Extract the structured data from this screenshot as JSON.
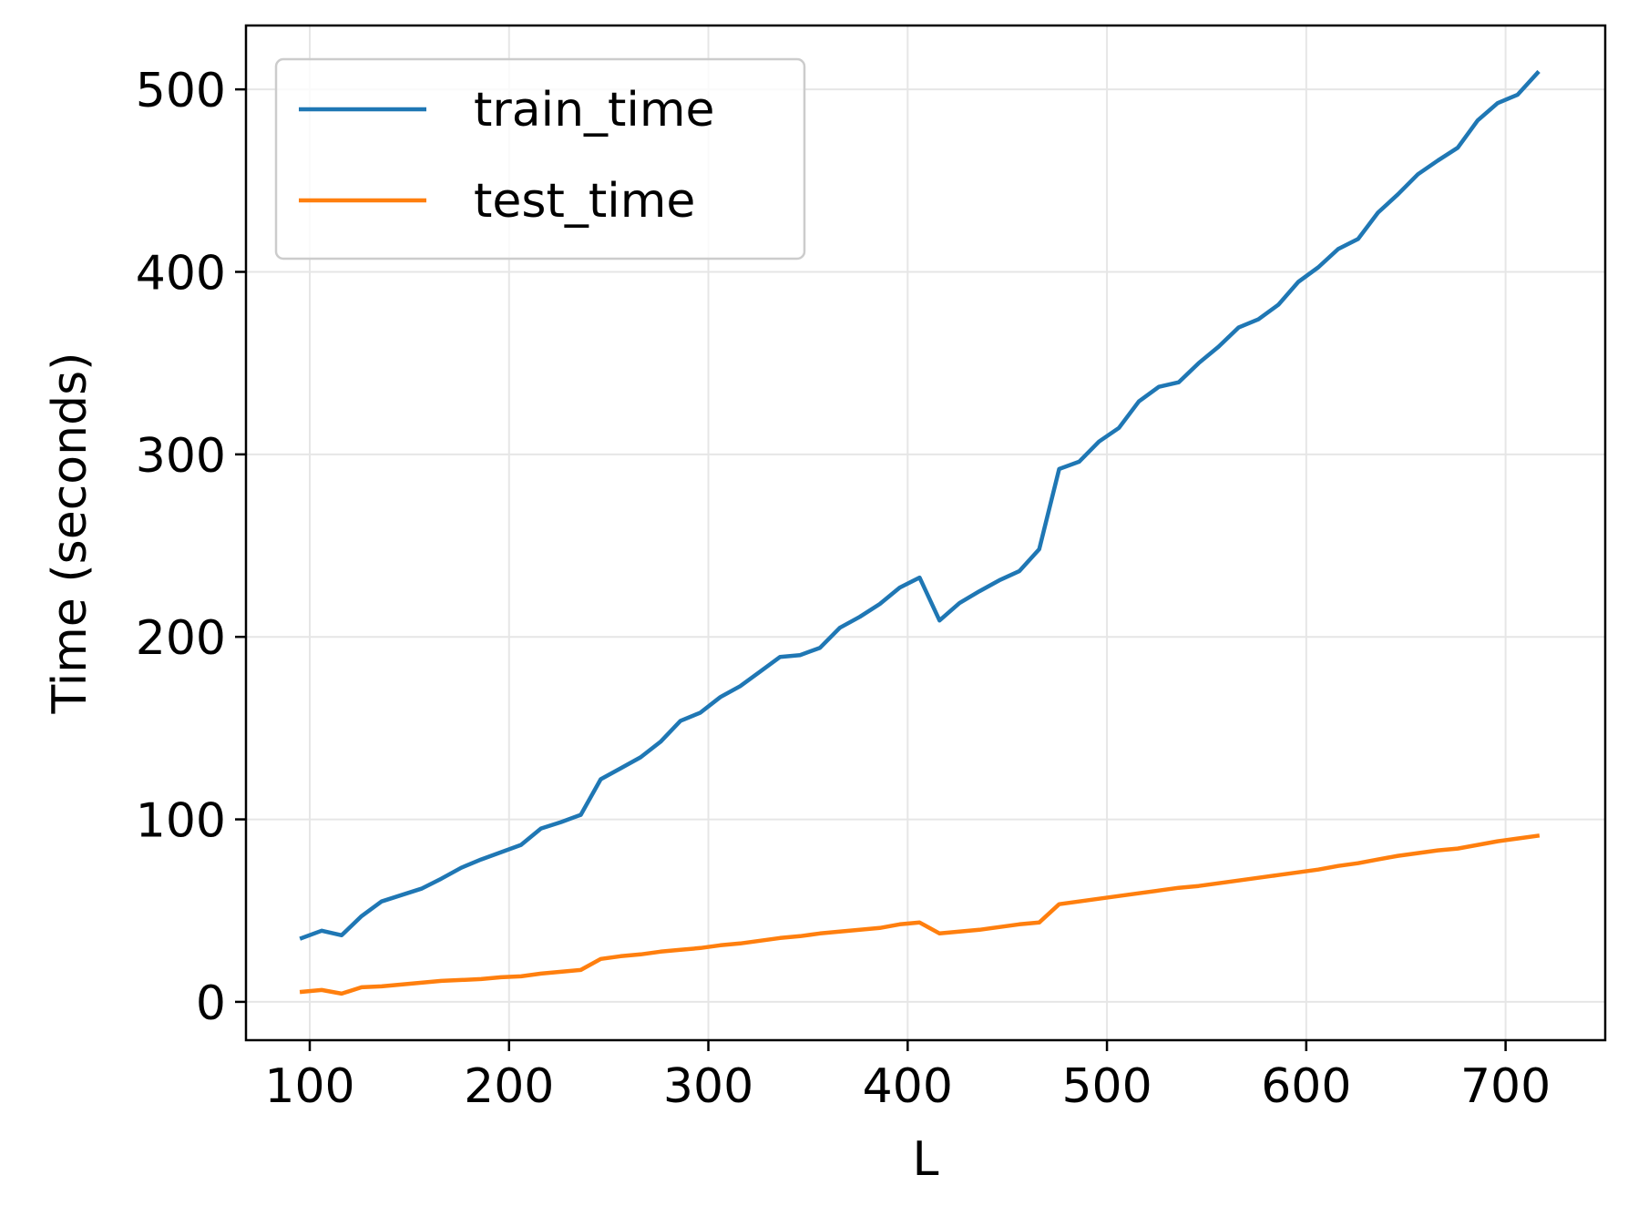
{
  "chart_data": {
    "type": "line",
    "title": "",
    "xlabel": "L",
    "ylabel": "Time (seconds)",
    "xlim": [
      68,
      750
    ],
    "ylim": [
      -21,
      535
    ],
    "xticks": [
      100,
      200,
      300,
      400,
      500,
      600,
      700
    ],
    "yticks": [
      0,
      100,
      200,
      300,
      400,
      500
    ],
    "grid": true,
    "legend_position": "top-left",
    "x": [
      96,
      106,
      116,
      126,
      136,
      146,
      156,
      166,
      176,
      186,
      196,
      206,
      216,
      226,
      236,
      246,
      256,
      266,
      276,
      286,
      296,
      306,
      316,
      326,
      336,
      346,
      356,
      366,
      376,
      386,
      396,
      406,
      416,
      426,
      436,
      446,
      456,
      466,
      476,
      486,
      496,
      506,
      516,
      526,
      536,
      546,
      556,
      566,
      576,
      586,
      596,
      606,
      616,
      626,
      636,
      646,
      656,
      666,
      676,
      686,
      696,
      706,
      716
    ],
    "series": [
      {
        "name": "train_time",
        "color": "#1f77b4",
        "values": [
          35,
          39,
          36.5,
          47,
          55,
          58.5,
          62,
          67.5,
          73.5,
          78,
          82,
          86,
          95,
          98.5,
          102.5,
          122,
          128,
          134,
          142.5,
          154,
          158.5,
          167,
          173,
          181,
          189,
          190,
          194,
          205,
          211,
          218,
          227,
          232.5,
          209,
          218.5,
          225,
          231,
          236,
          248,
          292,
          296,
          307,
          314.5,
          329,
          337,
          339.5,
          350,
          359,
          369.5,
          374,
          382,
          394.5,
          402.5,
          412.5,
          418,
          432.5,
          442.5,
          453.5,
          461,
          468,
          483,
          492.5,
          497,
          509
        ]
      },
      {
        "name": "test_time",
        "color": "#ff7f0e",
        "values": [
          5.5,
          6.5,
          4.5,
          8,
          8.5,
          9.5,
          10.5,
          11.5,
          12,
          12.5,
          13.5,
          14,
          15.5,
          16.5,
          17.5,
          23.5,
          25,
          26,
          27.5,
          28.5,
          29.5,
          31,
          32,
          33.5,
          35,
          36,
          37.5,
          38.5,
          39.5,
          40.5,
          42.5,
          43.5,
          37.5,
          38.5,
          39.5,
          41,
          42.5,
          43.5,
          53.5,
          55,
          56.5,
          58,
          59.5,
          61,
          62.5,
          63.5,
          65,
          66.5,
          68,
          69.5,
          71,
          72.5,
          74.5,
          76,
          78,
          80,
          81.5,
          83,
          84,
          86,
          88,
          89.5,
          91
        ]
      }
    ]
  }
}
